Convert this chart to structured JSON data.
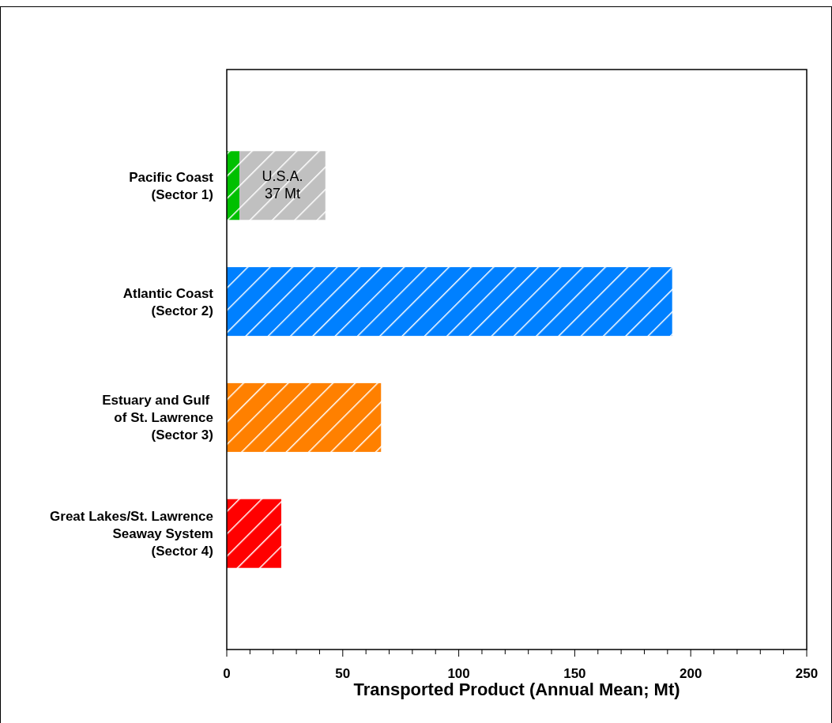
{
  "chart_data": {
    "type": "bar",
    "orientation": "horizontal",
    "stacked": true,
    "categories": [
      "Pacific Coast\n(Sector 1)",
      "Atlantic Coast\n(Sector 2)",
      "Estuary and Gulf \nof St. Lawrence\n(Sector 3)",
      "Great Lakes/St. Lawrence\nSeaway System\n(Sector 4)"
    ],
    "series": [
      {
        "colors": [
          "#00c000",
          "#0080ff",
          "#ff8000",
          "#ff0000"
        ],
        "values": [
          5.5,
          192,
          66.5,
          23.5
        ]
      },
      {
        "name": "U.S.A.",
        "color": "#c0c0c0",
        "values": [
          37,
          null,
          null,
          null
        ],
        "value_labels": [
          "37 Mt",
          null,
          null,
          null
        ]
      }
    ],
    "xlabel": "Transported Product (Annual Mean; Mt)",
    "xlim": [
      0,
      250
    ],
    "xticks": [
      0,
      {
        "value": 10,
        "label": null
      },
      {
        "value": 20,
        "label": null
      },
      {
        "value": 30,
        "label": null
      },
      {
        "value": 40,
        "label": null
      },
      50,
      {
        "value": 60,
        "label": null
      },
      {
        "value": 70,
        "label": null
      },
      {
        "value": 80,
        "label": null
      },
      {
        "value": 90,
        "label": null
      },
      100,
      {
        "value": 110,
        "label": null
      },
      {
        "value": 120,
        "label": null
      },
      {
        "value": 130,
        "label": null
      },
      {
        "value": 140,
        "label": null
      },
      150,
      {
        "value": 160,
        "label": null
      },
      {
        "value": 170,
        "label": null
      },
      {
        "value": 180,
        "label": null
      },
      {
        "value": 190,
        "label": null
      },
      200,
      {
        "value": 210,
        "label": null
      },
      {
        "value": 220,
        "label": null
      },
      {
        "value": 230,
        "label": null
      },
      {
        "value": 240,
        "label": null
      },
      250
    ],
    "grid": false
  }
}
